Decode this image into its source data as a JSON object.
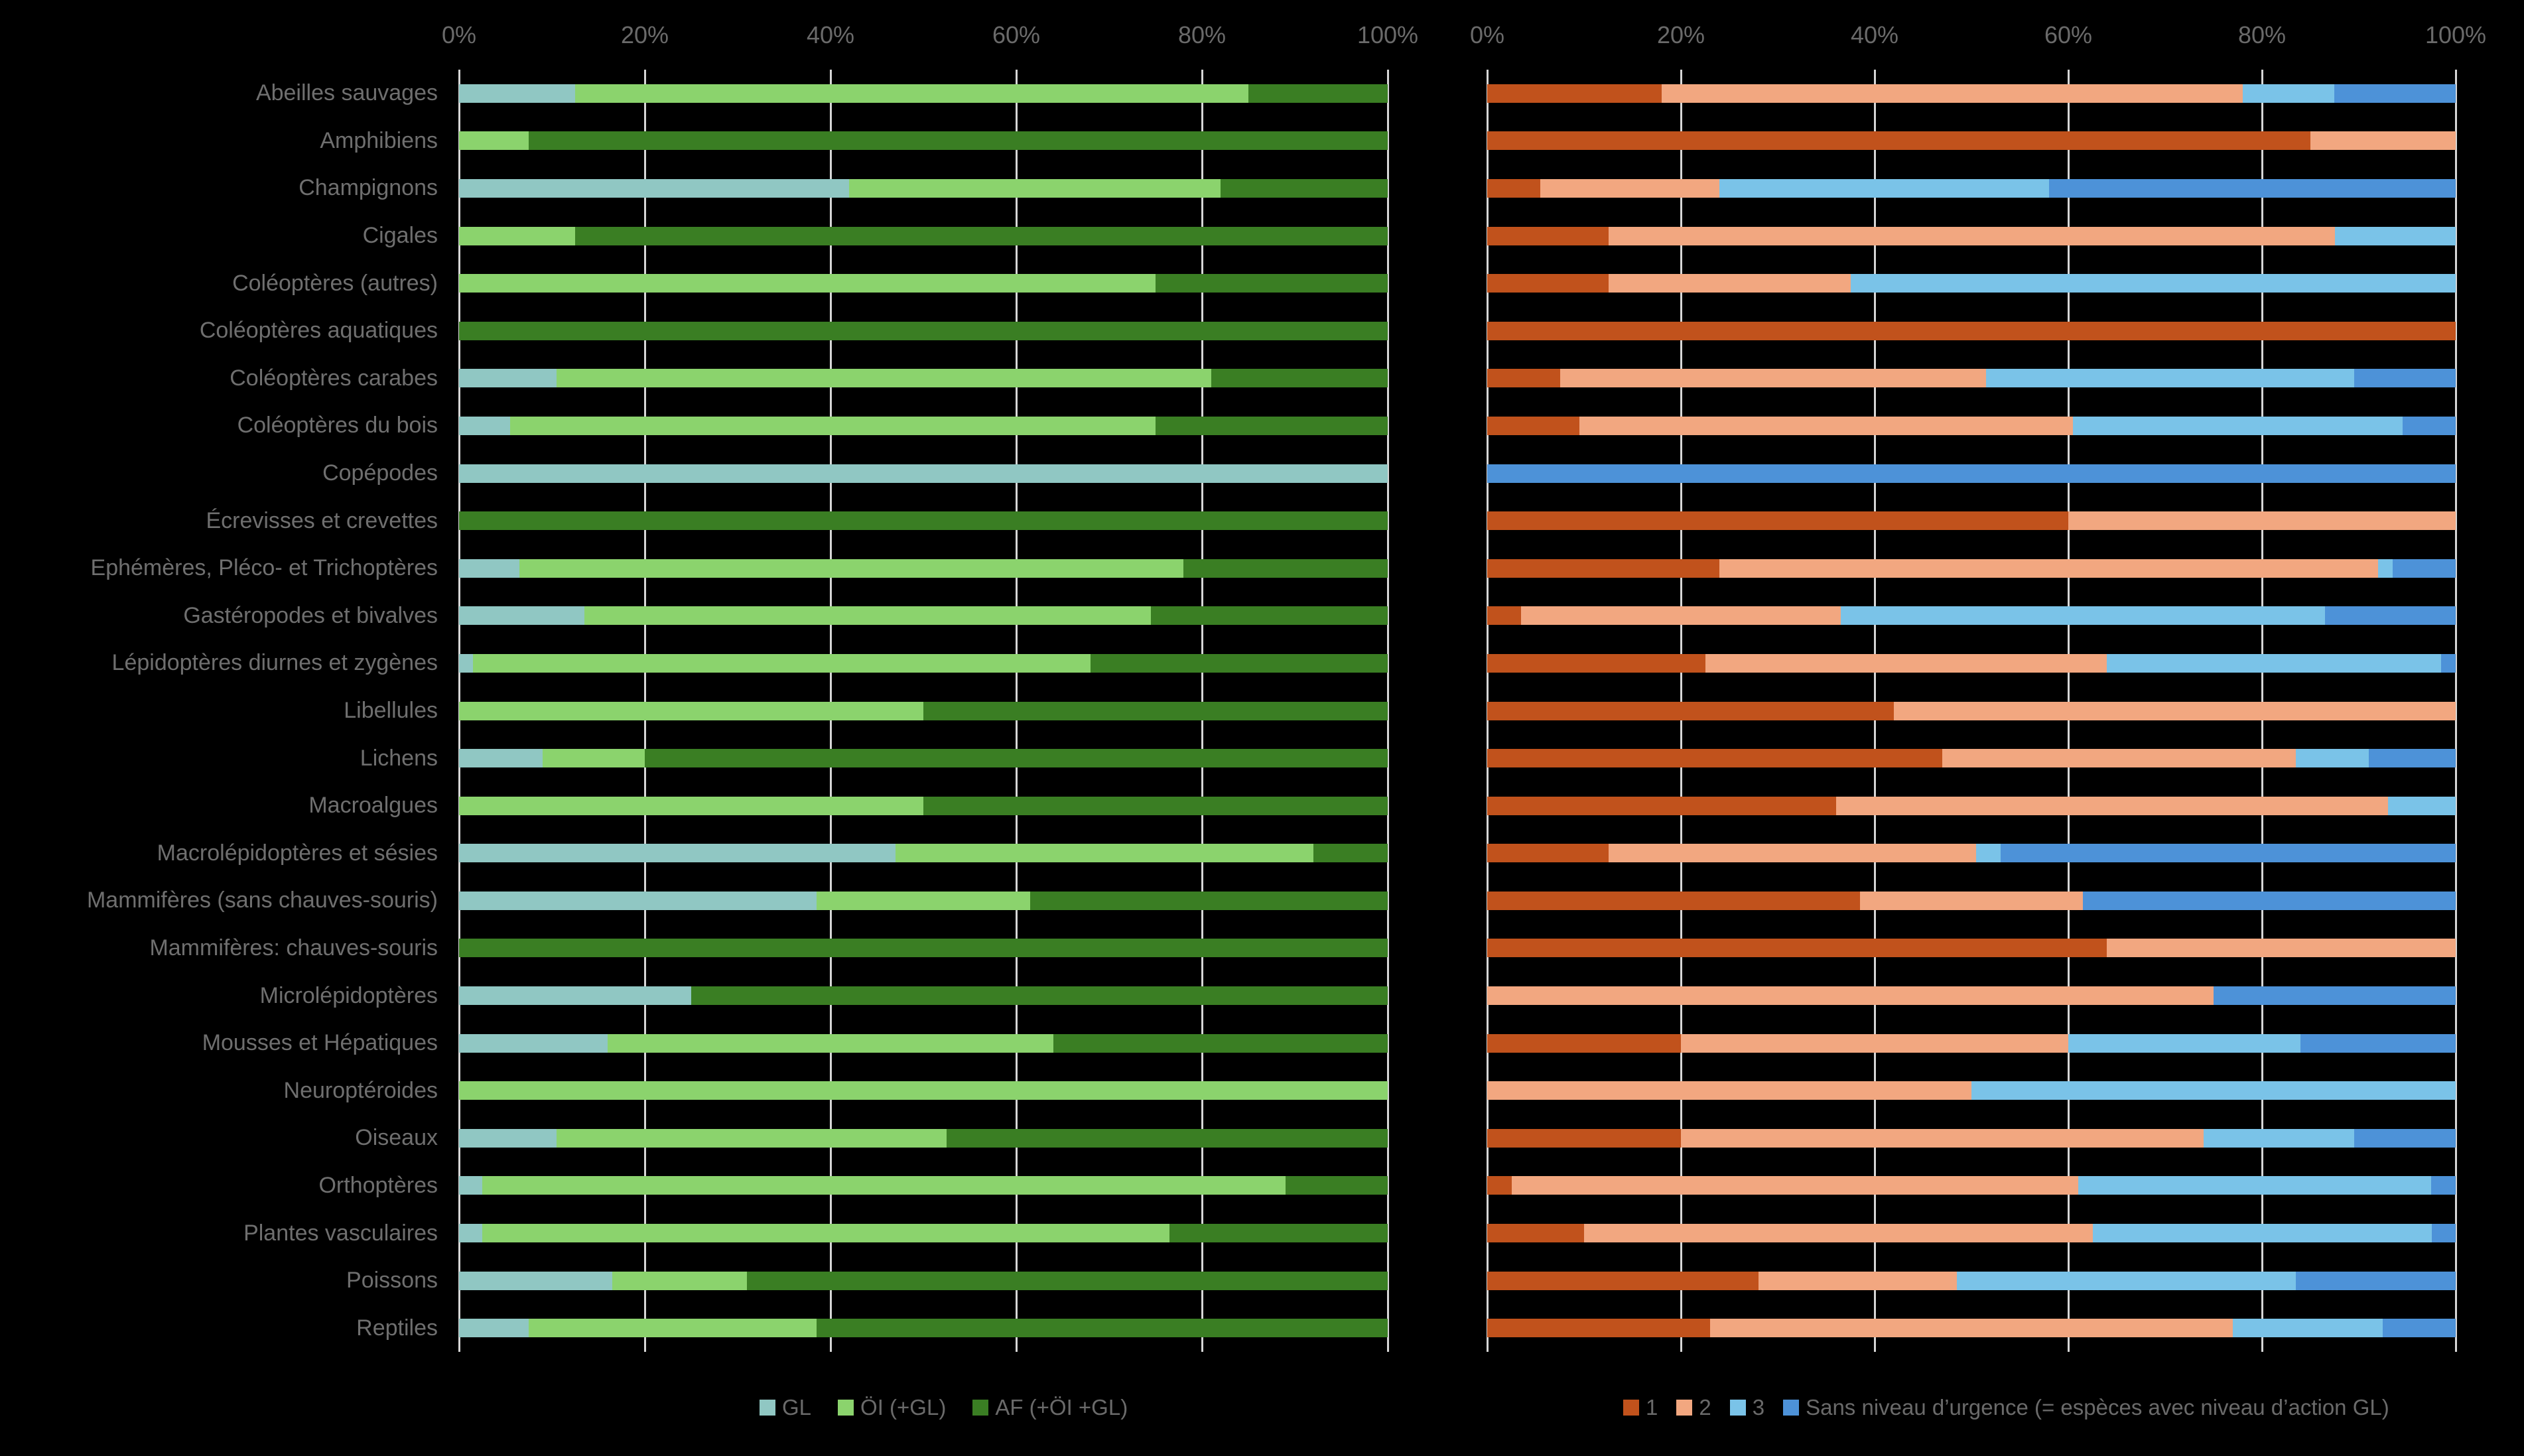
{
  "page": {
    "background": "#000000",
    "text_color": "#6F6F6F",
    "grid_color": "#D6D6D6"
  },
  "chart_data": [
    {
      "id": "niveaux-action",
      "type": "bar",
      "orientation": "horizontal-stacked",
      "title": "",
      "xlabel": "",
      "ylabel": "",
      "xlim": [
        0,
        100
      ],
      "x_ticks": [
        "0%",
        "20%",
        "40%",
        "60%",
        "80%",
        "100%"
      ],
      "grid": true,
      "legend_position": "bottom",
      "categories": [
        "Abeilles sauvages",
        "Amphibiens",
        "Champignons",
        "Cigales",
        "Coléoptères (autres)",
        "Coléoptères aquatiques",
        "Coléoptères carabes",
        "Coléoptères du bois",
        "Copépodes",
        "Écrevisses et crevettes",
        "Ephémères, Pléco- et Trichoptères",
        "Gastéropodes et bivalves",
        "Lépidoptères diurnes et zygènes",
        "Libellules",
        "Lichens",
        "Macroalgues",
        "Macrolépidoptères et sésies",
        "Mammifères (sans chauves-souris)",
        "Mammifères: chauves-souris",
        "Microlépidoptères",
        "Mousses et Hépatiques",
        "Neuroptéroides",
        "Oiseaux",
        "Orthoptères",
        "Plantes vasculaires",
        "Poissons",
        "Reptiles"
      ],
      "series": [
        {
          "key": "gl",
          "name": "GL",
          "color": "#90C7C3",
          "values": [
            12.5,
            0,
            42,
            0,
            0,
            0,
            10.5,
            5.5,
            100,
            0,
            6.5,
            13.5,
            1.5,
            0,
            9,
            0,
            47,
            38.5,
            0,
            25,
            16,
            0,
            10.5,
            2.5,
            2.5,
            16.5,
            7.5
          ]
        },
        {
          "key": "oi",
          "name": "ÖI (+GL)",
          "color": "#8BD36D",
          "values": [
            72.5,
            7.5,
            40,
            12.5,
            75,
            0,
            70.5,
            69.5,
            0,
            0,
            71.5,
            61,
            66.5,
            50,
            11,
            50,
            45,
            23,
            0,
            0,
            48,
            100,
            42,
            86.5,
            74,
            14.5,
            31
          ]
        },
        {
          "key": "af",
          "name": "AF (+ÖI +GL)",
          "color": "#3A7E23",
          "values": [
            15,
            92.5,
            18,
            87.5,
            25,
            100,
            19,
            25,
            0,
            100,
            22,
            25.5,
            32,
            50,
            80,
            50,
            8,
            38.5,
            100,
            75,
            36,
            0,
            47.5,
            11,
            23.5,
            69,
            61.5
          ]
        }
      ]
    },
    {
      "id": "niveaux-urgence",
      "type": "bar",
      "orientation": "horizontal-stacked",
      "title": "",
      "xlabel": "",
      "ylabel": "",
      "xlim": [
        0,
        100
      ],
      "x_ticks": [
        "0%",
        "20%",
        "40%",
        "60%",
        "80%",
        "100%"
      ],
      "grid": true,
      "legend_position": "bottom",
      "categories": [
        "Abeilles sauvages",
        "Amphibiens",
        "Champignons",
        "Cigales",
        "Coléoptères (autres)",
        "Coléoptères aquatiques",
        "Coléoptères carabes",
        "Coléoptères du bois",
        "Copépodes",
        "Écrevisses et crevettes",
        "Ephémères, Pléco- et Trichoptères",
        "Gastéropodes et bivalves",
        "Lépidoptères diurnes et zygènes",
        "Libellules",
        "Lichens",
        "Macroalgues",
        "Macrolépidoptères et sésies",
        "Mammifères (sans chauves-souris)",
        "Mammifères: chauves-souris",
        "Microlépidoptères",
        "Mousses et Hépatiques",
        "Neuroptéroides",
        "Oiseaux",
        "Orthoptères",
        "Plantes vasculaires",
        "Poissons",
        "Reptiles"
      ],
      "series": [
        {
          "key": "n1",
          "name": "1",
          "color": "#C1521C",
          "values": [
            18,
            85,
            5.5,
            12.5,
            12.5,
            100,
            7.5,
            9.5,
            0,
            60,
            24,
            3.5,
            22.5,
            42,
            47,
            36,
            12.5,
            38.5,
            64,
            0,
            20,
            0,
            20,
            2.5,
            10,
            28,
            23
          ]
        },
        {
          "key": "n2",
          "name": "2",
          "color": "#F2A780",
          "values": [
            60,
            15,
            18.5,
            75,
            25,
            0,
            44,
            51,
            0,
            40,
            68,
            33,
            41.5,
            58,
            36.5,
            57,
            38,
            23,
            36,
            75,
            40,
            50,
            54,
            58.5,
            52.5,
            20.5,
            54
          ]
        },
        {
          "key": "n3",
          "name": "3",
          "color": "#7AC3E8",
          "values": [
            9.5,
            0,
            34,
            12.5,
            62.5,
            0,
            38,
            34,
            0,
            0,
            1.5,
            50,
            34.5,
            0,
            7.5,
            7,
            2.5,
            0,
            0,
            0,
            24,
            50,
            15.5,
            36.5,
            35,
            35,
            15.5
          ]
        },
        {
          "key": "sans",
          "name": "Sans niveau d’urgence (= espèces avec niveau d’action GL)",
          "color": "#4D92D8",
          "values": [
            12.5,
            0,
            42,
            0,
            0,
            0,
            10.5,
            5.5,
            100,
            0,
            6.5,
            13.5,
            1.5,
            0,
            9,
            0,
            47,
            38.5,
            0,
            25,
            16,
            0,
            10.5,
            2.5,
            2.5,
            16.5,
            7.5
          ]
        }
      ]
    }
  ]
}
